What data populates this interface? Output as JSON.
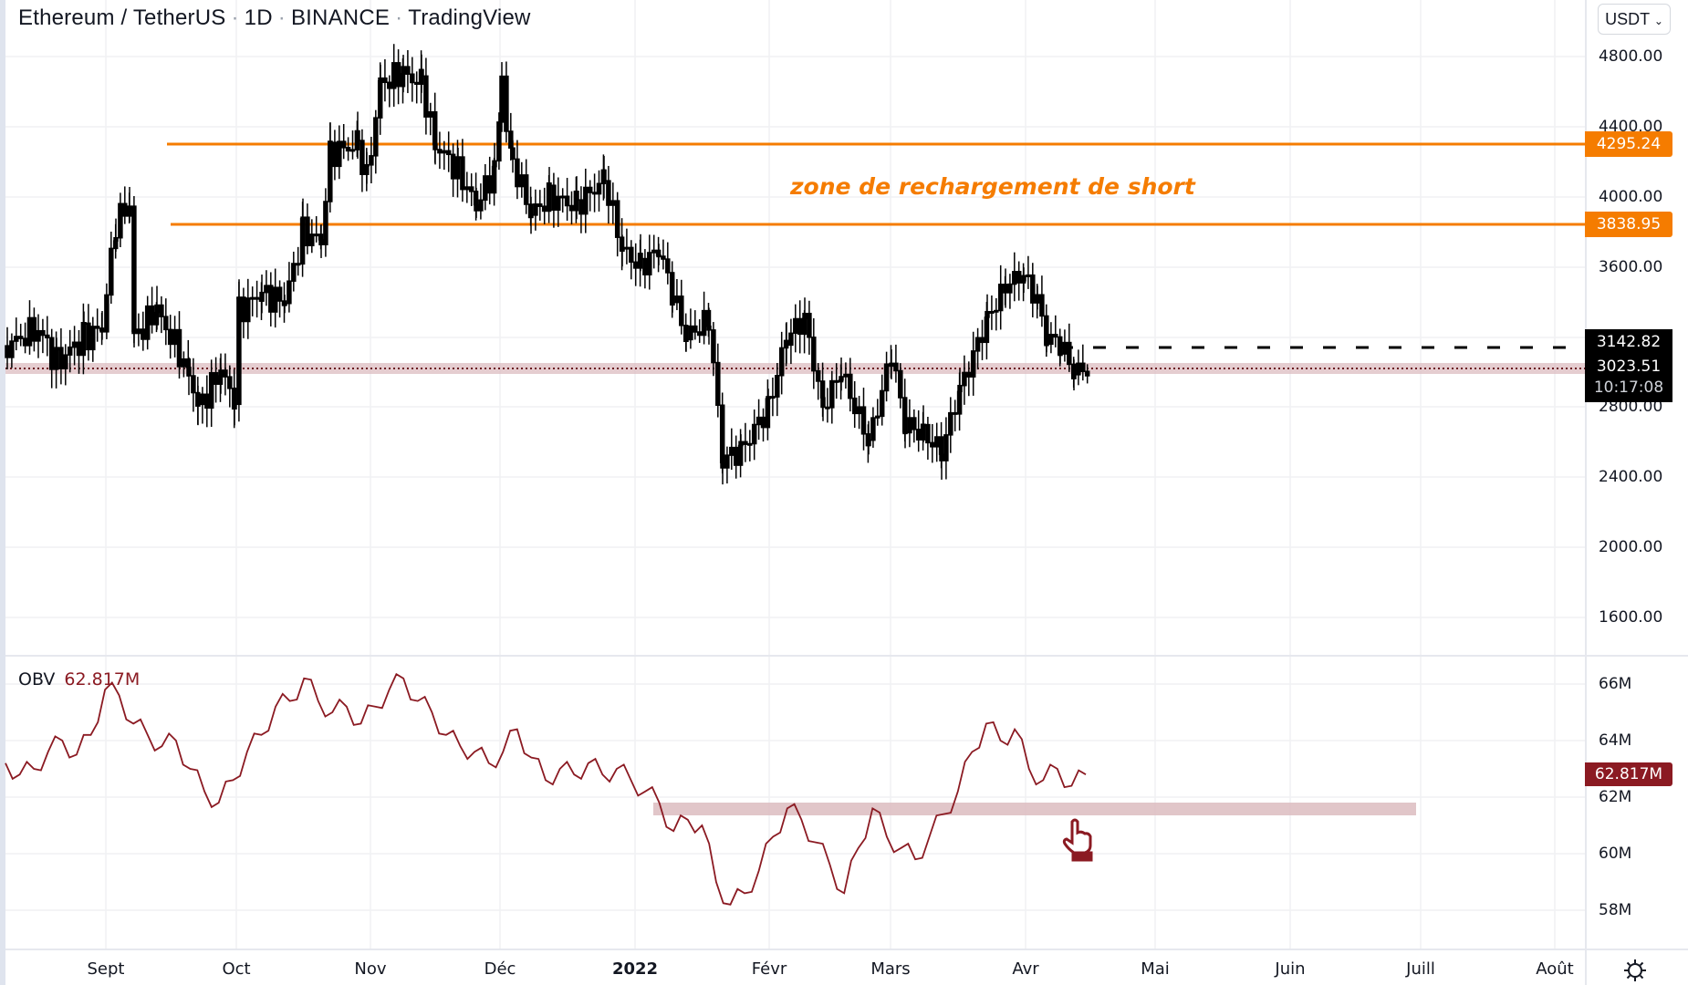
{
  "header": {
    "symbol": "Ethereum / TetherUS",
    "interval": "1D",
    "exchange": "BINANCE",
    "source": "TradingView",
    "currency_button": "USDT"
  },
  "price_axis": {
    "ticks": [
      "4800.00",
      "4400.00",
      "4000.00",
      "3600.00",
      "2800.00",
      "2400.00",
      "2000.00",
      "1600.00"
    ],
    "tags": {
      "resistance_high": "4295.24",
      "resistance_low": "3838.95",
      "dashed_level": "3142.82",
      "last_price": "3023.51",
      "countdown": "10:17:08"
    }
  },
  "annotations": {
    "zone_label": "zone de rechargement de short"
  },
  "obv": {
    "name": "OBV",
    "value": "62.817M",
    "ticks": [
      "66M",
      "64M",
      "62M",
      "60M",
      "58M"
    ],
    "tag": "62.817M"
  },
  "time_axis": {
    "labels": [
      "Sept",
      "Oct",
      "Nov",
      "Déc",
      "2022",
      "Févr",
      "Mars",
      "Avr",
      "Mai",
      "Juin",
      "Juill",
      "Août"
    ]
  },
  "colors": {
    "orange": "#f57c00",
    "obv_line": "#8b1a22",
    "support_band": "#d9b4b8",
    "candle": "#000000"
  },
  "chart_data": [
    {
      "type": "candlestick",
      "title": "Ethereum / TetherUS · 1D · BINANCE",
      "ylim": [
        1600,
        4900
      ],
      "y_ticks": [
        1600,
        2000,
        2400,
        2800,
        3600,
        4000,
        4400,
        4800
      ],
      "x_ticks": [
        "Sept",
        "Oct",
        "Nov",
        "Déc",
        "2022",
        "Févr",
        "Mars",
        "Avr",
        "Mai",
        "Juin",
        "Juill",
        "Août"
      ],
      "approx_closes_by_month": {
        "Aug-2021": 3200,
        "Sept": 3400,
        "Oct": 4300,
        "Nov": 4600,
        "Déc": 3700,
        "Janv": 2600,
        "Févr": 2900,
        "Mars": 3300,
        "Avr": 3023.51
      },
      "extremes": {
        "high": 4850,
        "low": 2160
      },
      "horizontal_levels": [
        {
          "price": 4295.24,
          "style": "solid",
          "color": "#f57c00"
        },
        {
          "price": 3838.95,
          "style": "solid",
          "color": "#f57c00"
        },
        {
          "price": 3142.82,
          "style": "dashed",
          "color": "#000000"
        },
        {
          "price": 3023.51,
          "style": "dotted-band",
          "color": "#d9b4b8"
        }
      ],
      "annotations": [
        "zone de rechargement de short"
      ],
      "last_price": 3023.51
    },
    {
      "type": "line",
      "title": "OBV",
      "ylim": [
        57,
        67
      ],
      "y_ticks": [
        "58M",
        "60M",
        "62M",
        "64M",
        "66M"
      ],
      "series": [
        {
          "name": "OBV",
          "last_value": 62.817,
          "approx_values_M": [
            63.2,
            62.8,
            63.0,
            63.6,
            64.0,
            63.5,
            64.2,
            65.8,
            65.6,
            64.6,
            64.2,
            63.8,
            64.0,
            63.0,
            62.2,
            61.8,
            62.6,
            63.6,
            64.2,
            65.2,
            65.4,
            66.2,
            65.4,
            65.0,
            65.2,
            64.6,
            65.2,
            65.8,
            66.2,
            65.4,
            65.0,
            64.2,
            63.8,
            63.6,
            63.2,
            63.6,
            64.4,
            63.4,
            62.6,
            63.0,
            62.8,
            63.2,
            62.8,
            63.0,
            62.6,
            62.2,
            61.8,
            60.8,
            61.2,
            61.0,
            59.0,
            58.2,
            58.6,
            59.4,
            60.6,
            61.6,
            61.2,
            60.4,
            59.6,
            58.6,
            60.2,
            61.6,
            60.6,
            60.2,
            59.8,
            60.6,
            61.4,
            62.2,
            63.6,
            64.6,
            64.0,
            64.4,
            63.0,
            62.6,
            63.0,
            62.4,
            62.8
          ]
        }
      ],
      "band": {
        "ymin_M": 61.4,
        "ymax_M": 61.8,
        "color": "#d9b4b8"
      }
    }
  ]
}
